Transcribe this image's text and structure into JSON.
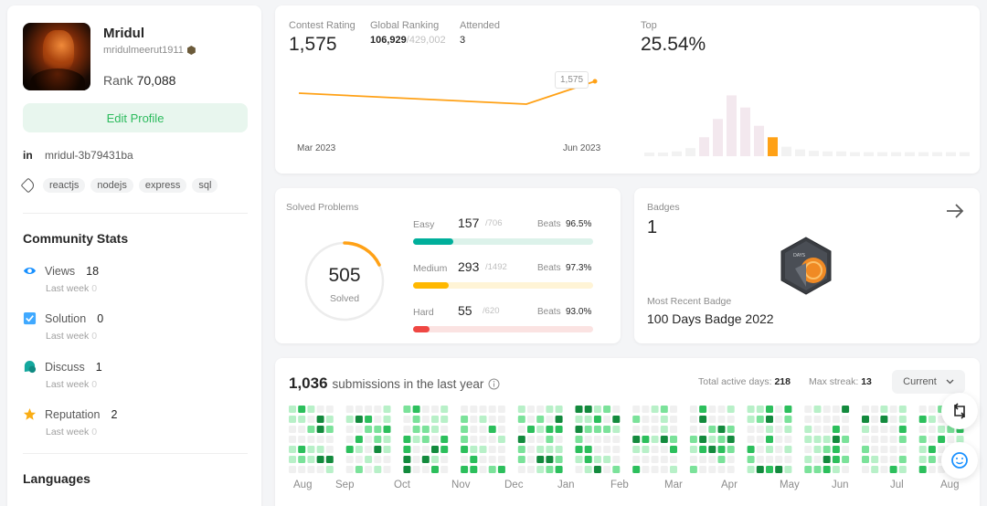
{
  "profile": {
    "name": "Mridul",
    "username": "mridulmeerut1911",
    "rank_label": "Rank",
    "rank_value": "70,088",
    "edit_button": "Edit Profile",
    "linkedin": "mridul-3b79431ba",
    "skills": [
      "reactjs",
      "nodejs",
      "express",
      "sql"
    ]
  },
  "community": {
    "title": "Community Stats",
    "last_week_label": "Last week",
    "items": [
      {
        "label": "Views",
        "value": "18",
        "last_week": "0",
        "icon": "eye-icon",
        "color": "#1890ff"
      },
      {
        "label": "Solution",
        "value": "0",
        "last_week": "0",
        "icon": "check-square-icon",
        "color": "#40a9ff"
      },
      {
        "label": "Discuss",
        "value": "1",
        "last_week": "0",
        "icon": "chat-bubble-icon",
        "color": "#13a89e"
      },
      {
        "label": "Reputation",
        "value": "2",
        "last_week": "0",
        "icon": "star-icon",
        "color": "#faad14"
      }
    ]
  },
  "languages": {
    "title": "Languages"
  },
  "contest": {
    "rating_label": "Contest Rating",
    "rating_value": "1,575",
    "global_label": "Global Ranking",
    "global_value": "106,929",
    "global_total": "/429,002",
    "attended_label": "Attended",
    "attended_value": "3",
    "top_label": "Top",
    "top_value": "25.54%",
    "x_start": "Mar 2023",
    "x_end": "Jun 2023",
    "tooltip": "1,575",
    "line_color": "#ffa116",
    "histogram": [
      0.05,
      0.05,
      0.07,
      0.12,
      0.28,
      0.55,
      0.9,
      0.72,
      0.45,
      0.28,
      0.14,
      0.1,
      0.08,
      0.07,
      0.07,
      0.06,
      0.06,
      0.06,
      0.06,
      0.06,
      0.06,
      0.06,
      0.06,
      0.06
    ],
    "histogram_highlight_index": 9
  },
  "solved": {
    "title": "Solved Problems",
    "total": "505",
    "total_label": "Solved",
    "beats_label": "Beats",
    "difficulties": [
      {
        "label": "Easy",
        "solved": "157",
        "total": "/706",
        "beats": "96.5%",
        "ratio": 0.222,
        "color": "#00af9b",
        "track": "#dcf2ea"
      },
      {
        "label": "Medium",
        "solved": "293",
        "total": "/1492",
        "beats": "97.3%",
        "ratio": 0.196,
        "color": "#ffb800",
        "track": "#fff4d6"
      },
      {
        "label": "Hard",
        "solved": "55",
        "total": "/620",
        "beats": "93.0%",
        "ratio": 0.089,
        "color": "#ef4743",
        "track": "#fbe3e2"
      }
    ]
  },
  "badges": {
    "title": "Badges",
    "count": "1",
    "recent_label": "Most Recent Badge",
    "recent_name": "100 Days Badge 2022",
    "badge_text": "DAYS"
  },
  "submissions": {
    "count": "1,036",
    "label": "submissions in the last year",
    "active_label": "Total active days:",
    "active_value": "218",
    "streak_label": "Max streak:",
    "streak_value": "13",
    "dropdown": "Current",
    "months": [
      "Aug",
      "Sep",
      "Oct",
      "Nov",
      "Dec",
      "Jan",
      "Feb",
      "Mar",
      "Apr",
      "May",
      "Jun",
      "Jul",
      "Aug"
    ]
  }
}
